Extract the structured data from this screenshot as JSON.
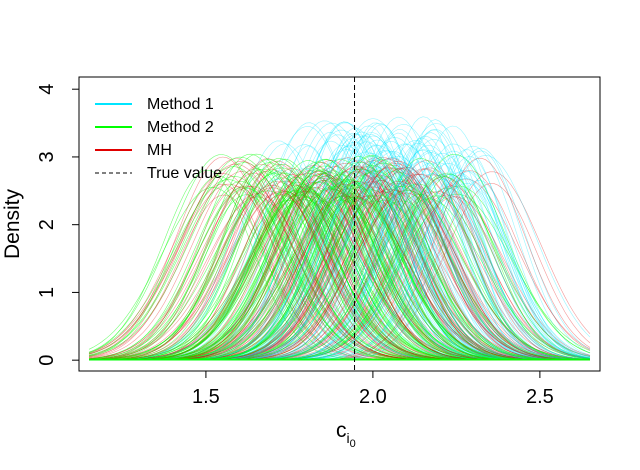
{
  "chart_data": {
    "type": "line",
    "title": "",
    "xlabel": "c",
    "xlabel_subscript": "i",
    "xlabel_subsubscript": "0",
    "ylabel": "Density",
    "xlim": [
      1.12,
      2.68
    ],
    "ylim": [
      -0.16,
      4.18
    ],
    "x_ticks": [
      1.5,
      2.0,
      2.5
    ],
    "x_tick_labels": [
      "1.5",
      "2.0",
      "2.5"
    ],
    "y_ticks": [
      0,
      1,
      2,
      3,
      4
    ],
    "y_tick_labels": [
      "0",
      "1",
      "2",
      "3",
      "4"
    ],
    "grid": false,
    "legend_position": "top-left",
    "true_value": 1.945,
    "series": [
      {
        "name": "Method 1",
        "color": "#00e5ff",
        "curve_count": 120,
        "kernel_bandwidth_range": [
          0.11,
          0.155
        ],
        "peak_density_range": [
          2.6,
          3.6
        ],
        "center_range": [
          1.72,
          2.33
        ],
        "mean_center": 2.05,
        "x_range": [
          1.15,
          2.65
        ]
      },
      {
        "name": "Method 2",
        "color": "#00ff00",
        "curve_count": 120,
        "kernel_bandwidth_range": [
          0.13,
          0.17
        ],
        "peak_density_range": [
          2.35,
          3.05
        ],
        "center_range": [
          1.5,
          2.25
        ],
        "mean_center": 1.9,
        "x_range": [
          1.15,
          2.65
        ]
      },
      {
        "name": "MH",
        "color": "#e00000",
        "curve_count": 120,
        "kernel_bandwidth_range": [
          0.13,
          0.17
        ],
        "peak_density_range": [
          2.4,
          3.0
        ],
        "center_range": [
          1.55,
          2.35
        ],
        "mean_center": 1.93,
        "x_range": [
          1.15,
          2.65
        ]
      }
    ],
    "legend": [
      {
        "label": "Method 1",
        "color": "#00e5ff",
        "style": "solid"
      },
      {
        "label": "Method 2",
        "color": "#00ff00",
        "style": "solid"
      },
      {
        "label": "MH",
        "color": "#e00000",
        "style": "solid"
      },
      {
        "label": "True value",
        "color": "#000000",
        "style": "dashed"
      }
    ]
  }
}
